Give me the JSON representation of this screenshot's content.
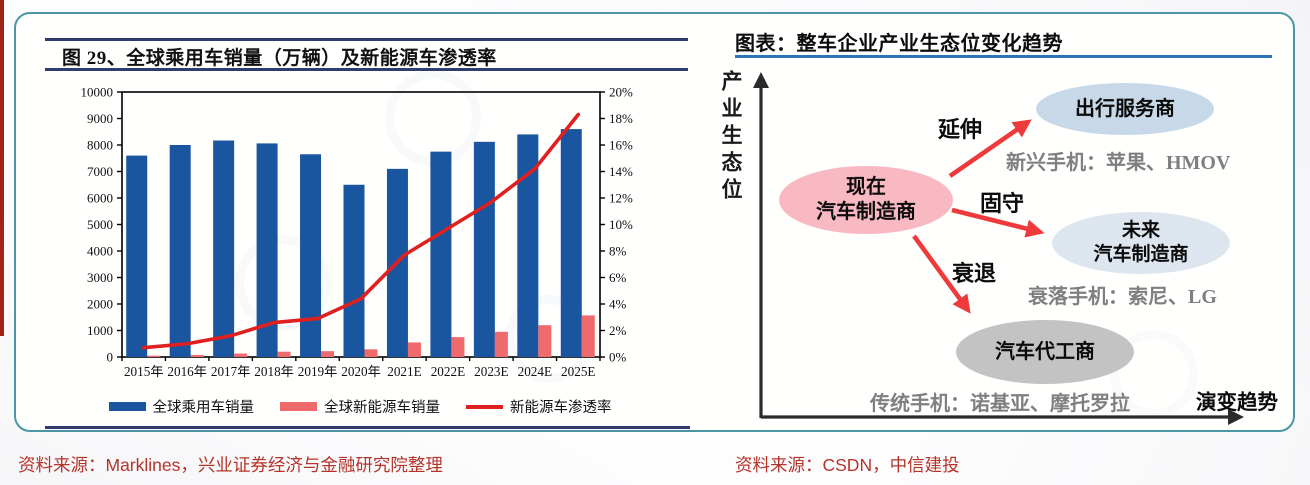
{
  "left_figure": {
    "title": "图 29、全球乘用车销量（万辆）及新能源车渗透率",
    "source": "资料来源：Marklines，兴业证券经济与金融研究院整理"
  },
  "chart_data": {
    "type": "bar",
    "categories": [
      "2015年",
      "2016年",
      "2017年",
      "2018年",
      "2019年",
      "2020年",
      "2021E",
      "2022E",
      "2023E",
      "2024E",
      "2025E"
    ],
    "series": [
      {
        "name": "全球乘用车销量",
        "type": "bar",
        "axis": "left",
        "color": "#1a56a0",
        "values": [
          7600,
          8000,
          8170,
          8060,
          7650,
          6500,
          7100,
          7750,
          8120,
          8400,
          8600
        ]
      },
      {
        "name": "全球新能源车销量",
        "type": "bar",
        "axis": "left",
        "color": "#ee6a6c",
        "values": [
          50,
          80,
          130,
          200,
          220,
          290,
          550,
          750,
          950,
          1200,
          1570
        ]
      },
      {
        "name": "新能源车渗透率",
        "type": "line",
        "axis": "right",
        "color": "#e01f1f",
        "values": [
          0.7,
          1.0,
          1.6,
          2.6,
          2.9,
          4.4,
          7.7,
          9.7,
          11.7,
          14.2,
          18.3
        ]
      }
    ],
    "left_axis": {
      "min": 0,
      "max": 10000,
      "step": 1000
    },
    "right_axis": {
      "min": 0,
      "max": 20,
      "step": 2,
      "suffix": "%"
    },
    "grid": false,
    "legend_position": "bottom"
  },
  "right_diagram": {
    "title": "图表：整车企业产业生态位变化趋势",
    "y_axis_label": "产业生态位",
    "x_axis_label": "演变趋势",
    "nodes": {
      "now": {
        "line1": "现在",
        "line2": "汽车制造商",
        "fill": "#f8b9c3"
      },
      "mobility": {
        "line1": "出行服务商",
        "fill": "#c7d9e8"
      },
      "future": {
        "line1": "未来",
        "line2": "汽车制造商",
        "fill": "#dde6ef"
      },
      "oem": {
        "line1": "汽车代工商",
        "fill": "#c3c3c3"
      }
    },
    "arrow_labels": {
      "extend": "延伸",
      "hold": "固守",
      "decline": "衰退"
    },
    "annotations": {
      "emerging": "新兴手机：苹果、HMOV",
      "declining": "衰落手机：索尼、LG",
      "traditional": "传统手机：诺基亚、摩托罗拉"
    },
    "source": "资料来源：CSDN，中信建投"
  }
}
